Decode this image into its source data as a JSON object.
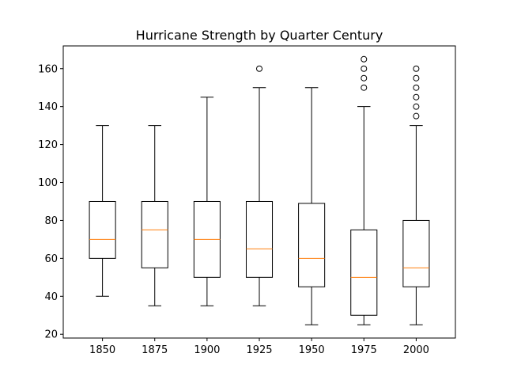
{
  "chart_data": {
    "type": "boxplot",
    "title": "Hurricane Strength by Quarter Century",
    "xlabel": "",
    "ylabel": "",
    "ylim": [
      18,
      172
    ],
    "yticks": [
      20,
      40,
      60,
      80,
      100,
      120,
      140,
      160
    ],
    "categories": [
      "1850",
      "1875",
      "1900",
      "1925",
      "1950",
      "1975",
      "2000"
    ],
    "boxes": [
      {
        "label": "1850",
        "whisker_low": 40,
        "q1": 60,
        "median": 70,
        "q3": 90,
        "whisker_high": 130,
        "outliers": []
      },
      {
        "label": "1875",
        "whisker_low": 35,
        "q1": 55,
        "median": 75,
        "q3": 90,
        "whisker_high": 130,
        "outliers": []
      },
      {
        "label": "1900",
        "whisker_low": 35,
        "q1": 50,
        "median": 70,
        "q3": 90,
        "whisker_high": 145,
        "outliers": []
      },
      {
        "label": "1925",
        "whisker_low": 35,
        "q1": 50,
        "median": 65,
        "q3": 90,
        "whisker_high": 150,
        "outliers": [
          160
        ]
      },
      {
        "label": "1950",
        "whisker_low": 25,
        "q1": 45,
        "median": 60,
        "q3": 89,
        "whisker_high": 150,
        "outliers": []
      },
      {
        "label": "1975",
        "whisker_low": 25,
        "q1": 30,
        "median": 50,
        "q3": 75,
        "whisker_high": 140,
        "outliers": [
          150,
          155,
          160,
          165
        ]
      },
      {
        "label": "2000",
        "whisker_low": 25,
        "q1": 45,
        "median": 55,
        "q3": 80,
        "whisker_high": 130,
        "outliers": [
          135,
          140,
          145,
          150,
          155,
          160
        ]
      }
    ],
    "grid": false,
    "colors": {
      "box": "#000000",
      "median": "#ff7f0e",
      "outlier": "#000000"
    }
  }
}
